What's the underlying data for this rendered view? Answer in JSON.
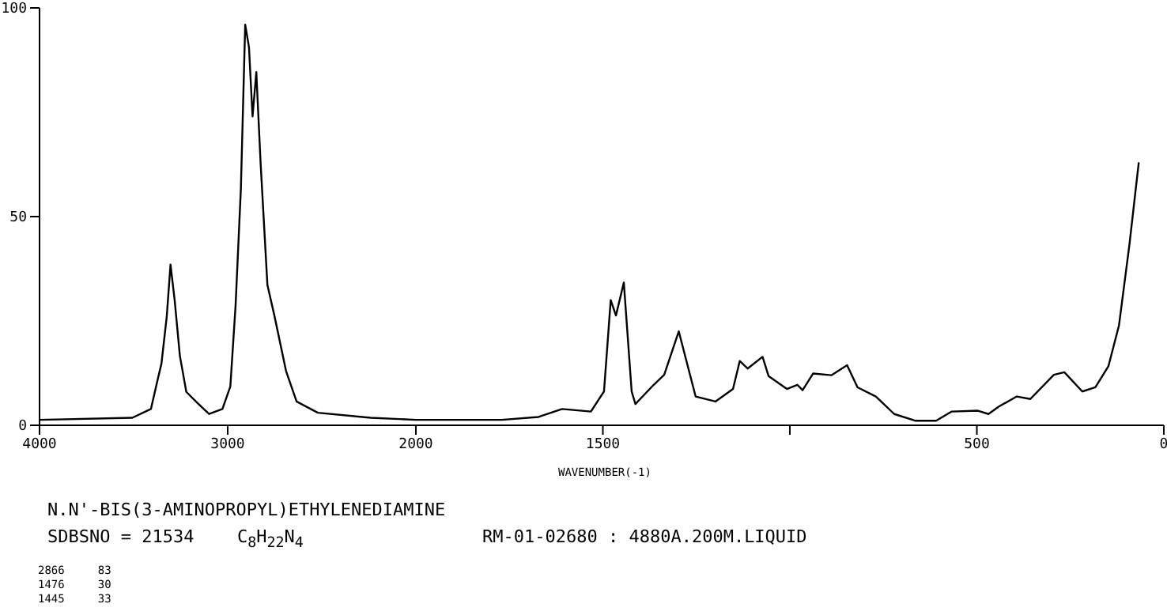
{
  "chart_data": [
    {
      "type": "line",
      "x": [
        4000,
        3507,
        3408,
        3372,
        3352,
        3324,
        3304,
        3282,
        3254,
        3220,
        3169,
        3099,
        3028,
        2986,
        2958,
        2930,
        2907,
        2887,
        2868,
        2848,
        2825,
        2789,
        2752,
        2690,
        2634,
        2521,
        2240,
        2000
      ],
      "series": [
        {
          "color": "#000000",
          "values": [
            1.3,
            1.8,
            3.9,
            11,
            14.8,
            26,
            38.5,
            30,
            16.6,
            8,
            5.7,
            2.7,
            3.9,
            9.3,
            28.8,
            56.7,
            96,
            90.6,
            74,
            84.6,
            62.7,
            33.6,
            26.3,
            13,
            5.7,
            3,
            1.8,
            1.3
          ]
        }
      ],
      "xlim": [
        4000,
        2000
      ],
      "xticks": [
        4000,
        3000,
        2000
      ],
      "ylim": [
        0,
        100
      ],
      "yticks": [
        0,
        50,
        100
      ],
      "marker": "none",
      "line_style": "solid",
      "annotations": [
        "N.N'-BIS(3-AMINOPROPYL)ETHYLENEDIAMINE",
        "SDBSNO = 21534",
        "C$_{8}$H$_{22}$N$_{4}$",
        "RM-01-02680 : 4880A.200M.LIQUID",
        "2866     83",
        "1476     30",
        "1445     33"
      ]
    },
    {
      "type": "line",
      "xlabel": "WAVENUMBER(-1)",
      "x": [
        2000,
        1958,
        1771,
        1672,
        1609,
        1532,
        1497,
        1479,
        1465,
        1444,
        1423,
        1413,
        1364,
        1336,
        1297,
        1252,
        1199,
        1152,
        1134,
        1113,
        1073,
        1057,
        1008,
        980,
        966,
        938,
        889,
        847,
        819,
        770,
        721,
        665,
        609,
        567,
        497,
        469,
        441,
        393,
        357,
        294,
        266,
        218,
        183,
        148,
        120,
        92,
        67
      ],
      "series": [
        {
          "color": "#000000",
          "values": [
            1.3,
            1.3,
            1.3,
            2,
            3.9,
            3.3,
            8.1,
            30,
            26.3,
            34.2,
            8.1,
            5.1,
            9.7,
            12.1,
            22.5,
            6.9,
            5.7,
            8.7,
            15.4,
            13.6,
            16.4,
            11.8,
            8.7,
            9.7,
            8.4,
            12.4,
            12,
            14.4,
            9.1,
            6.9,
            2.7,
            1.1,
            1.1,
            3.3,
            3.5,
            2.7,
            4.5,
            6.9,
            6.3,
            12.1,
            12.7,
            8.1,
            9.1,
            14.2,
            23.9,
            43.3,
            63
          ]
        }
      ],
      "xlim": [
        2000,
        0
      ],
      "xticks": [
        1500,
        {
          "value": 1000,
          "label": null
        },
        500,
        0
      ],
      "ylim": [
        0,
        100
      ],
      "tick_labels": "x",
      "marker": "none",
      "line_style": "solid"
    }
  ]
}
